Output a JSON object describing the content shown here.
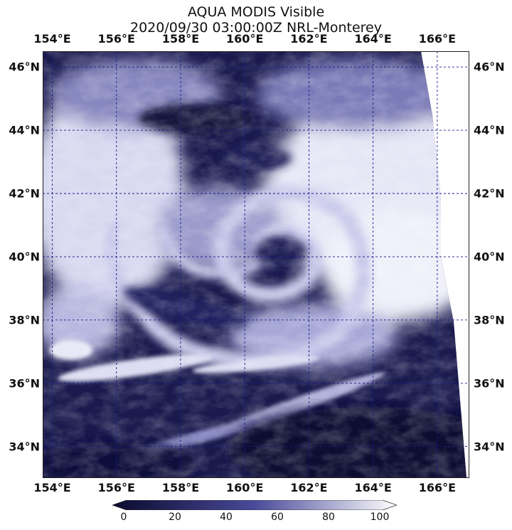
{
  "title": {
    "line1": "AQUA MODIS Visible",
    "line2": "2020/09/30 03:00:00Z NRL-Monterey"
  },
  "map": {
    "lon_labels": [
      "154°E",
      "156°E",
      "158°E",
      "160°E",
      "162°E",
      "164°E",
      "166°E"
    ],
    "lon_values": [
      154,
      156,
      158,
      160,
      162,
      164,
      166
    ],
    "lat_labels": [
      "46°N",
      "44°N",
      "42°N",
      "40°N",
      "38°N",
      "36°N",
      "34°N"
    ],
    "lat_values": [
      46,
      44,
      42,
      40,
      38,
      36,
      34
    ],
    "lon_range": [
      153.7,
      167.0
    ],
    "lat_range": [
      33.0,
      46.5
    ],
    "gridline_color": "#1a1a8c",
    "imagery": "satellite visible cloud imagery, swath edge on right",
    "storm_center": [
      160.5,
      40.0
    ]
  },
  "colorbar": {
    "ticks": [
      "0",
      "20",
      "40",
      "60",
      "80",
      "100"
    ],
    "tick_values": [
      0,
      20,
      40,
      60,
      80,
      100
    ],
    "range": [
      0,
      100
    ],
    "color_low": "#0a0a2e",
    "color_mid": "#4a4a9a",
    "color_high": "#ffffff"
  }
}
